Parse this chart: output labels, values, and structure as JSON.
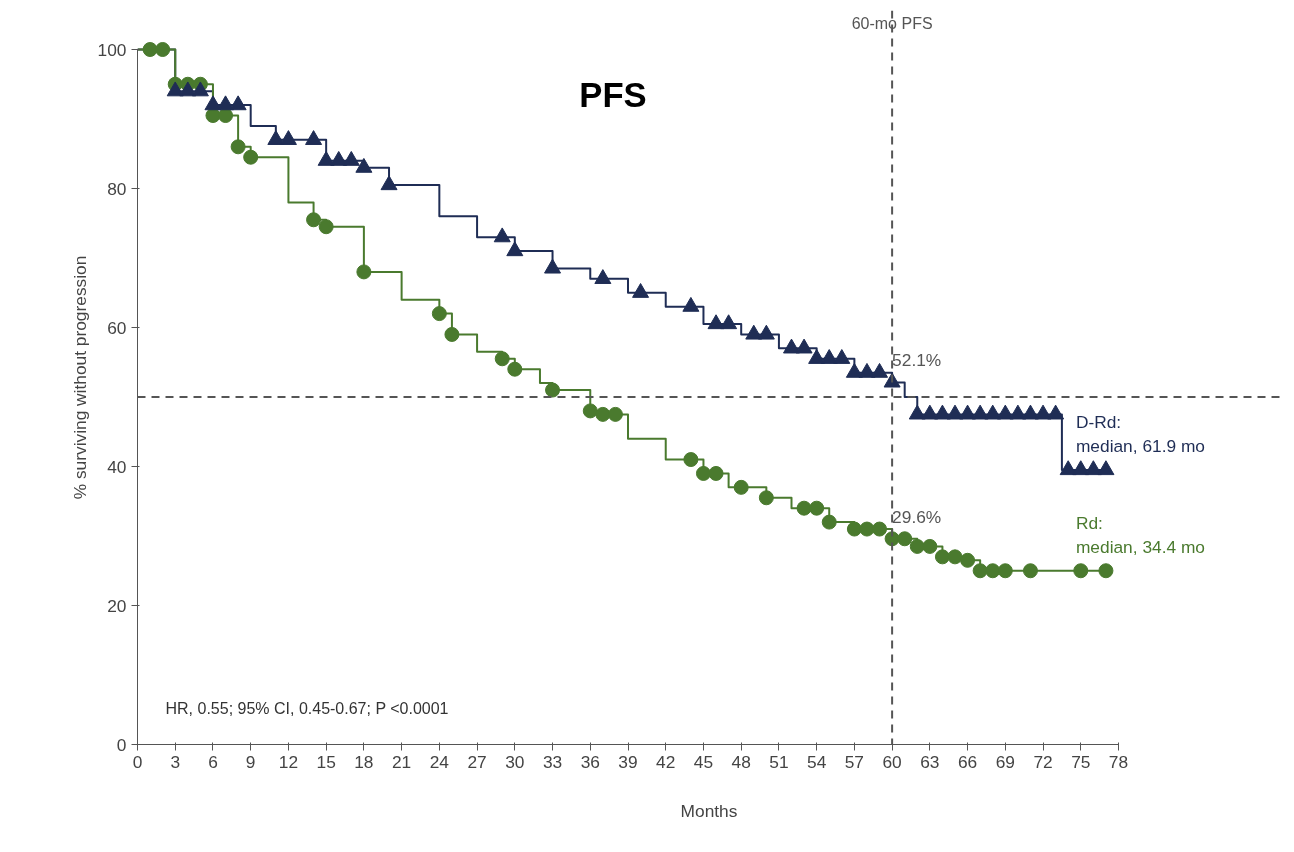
{
  "chart_data": {
    "type": "step",
    "title": "PFS",
    "xlabel": "Months",
    "ylabel": "% surviving without progression",
    "xlim": [
      0,
      78
    ],
    "ylim": [
      0,
      100
    ],
    "xticks": [
      0,
      3,
      6,
      9,
      12,
      15,
      18,
      21,
      24,
      27,
      30,
      33,
      36,
      39,
      42,
      45,
      48,
      51,
      54,
      57,
      60,
      63,
      66,
      69,
      72,
      75,
      78
    ],
    "yticks": [
      0,
      20,
      40,
      60,
      80,
      100
    ],
    "grid": false,
    "line_style": "solid",
    "series": [
      {
        "name": "D-Rd:\nmedian, 61.9 mo",
        "color": "#1f2d55",
        "marker": "none",
        "x": [
          0,
          3,
          6,
          9,
          11,
          15,
          18,
          20,
          24,
          27,
          30,
          33,
          36,
          39,
          42,
          45,
          48,
          51,
          54,
          57,
          60,
          61,
          62,
          73.5,
          77
        ],
        "values": [
          100,
          94,
          92,
          89,
          87,
          84,
          83,
          80.5,
          76,
          73,
          71,
          68.5,
          67,
          65,
          63,
          60.5,
          59,
          57,
          55.5,
          53.5,
          52.1,
          50,
          47.5,
          39.5,
          39.5
        ]
      },
      {
        "color": "#1f2d55",
        "type": "scatter",
        "marker": "triangle",
        "x": [
          3,
          4,
          5,
          6,
          7,
          8,
          11,
          12,
          14,
          15,
          16,
          17,
          18,
          20,
          29,
          30,
          33,
          37,
          40,
          44,
          46,
          47,
          49,
          50,
          52,
          53,
          54,
          55,
          56,
          57,
          58,
          59,
          60,
          62,
          63,
          64,
          65,
          66,
          67,
          68,
          69,
          70,
          71,
          72,
          73,
          74,
          75,
          76,
          77
        ],
        "values": [
          94,
          94,
          94,
          92,
          92,
          92,
          87,
          87,
          87,
          84,
          84,
          84,
          83,
          80.5,
          73,
          71,
          68.5,
          67,
          65,
          63,
          60.5,
          60.5,
          59,
          59,
          57,
          57,
          55.5,
          55.5,
          55.5,
          53.5,
          53.5,
          53.5,
          52.1,
          47.5,
          47.5,
          47.5,
          47.5,
          47.5,
          47.5,
          47.5,
          47.5,
          47.5,
          47.5,
          47.5,
          47.5,
          39.5,
          39.5,
          39.5,
          39.5
        ]
      },
      {
        "name": "Rd:\nmedian, 34.4 mo",
        "color": "#4a7a2e",
        "marker": "none",
        "x": [
          0,
          3,
          6,
          8,
          9,
          12,
          14,
          15,
          18,
          21,
          24,
          25,
          27,
          29,
          30,
          32,
          33,
          36,
          37,
          39,
          42,
          45,
          47,
          50,
          52,
          55,
          57,
          60,
          62,
          64,
          66,
          67,
          77
        ],
        "values": [
          100,
          95,
          90.5,
          86,
          84.5,
          78,
          75.5,
          74.5,
          68,
          64,
          62,
          59,
          56.5,
          55.5,
          54,
          52,
          51,
          48,
          47.5,
          44,
          41,
          39,
          37,
          35.5,
          34,
          32,
          31,
          29.6,
          28.5,
          27,
          26.5,
          25,
          25
        ]
      },
      {
        "color": "#4a7a2e",
        "type": "scatter",
        "marker": "circle",
        "x": [
          1,
          2,
          3,
          4,
          5,
          6,
          7,
          8,
          9,
          14,
          15,
          18,
          24,
          25,
          29,
          30,
          33,
          36,
          37,
          38,
          44,
          45,
          46,
          48,
          50,
          53,
          54,
          55,
          57,
          58,
          59,
          60,
          61,
          62,
          63,
          64,
          65,
          66,
          67,
          68,
          69,
          71,
          75,
          77
        ],
        "values": [
          100,
          100,
          95,
          95,
          95,
          90.5,
          90.5,
          86,
          84.5,
          75.5,
          74.5,
          68,
          62,
          59,
          55.5,
          54,
          51,
          48,
          47.5,
          47.5,
          41,
          39,
          39,
          37,
          35.5,
          34,
          34,
          32,
          31,
          31,
          31,
          29.6,
          29.6,
          28.5,
          28.5,
          27,
          27,
          26.5,
          25,
          25,
          25,
          25,
          25,
          25
        ]
      }
    ],
    "ref_lines": [
      {
        "axis": "y",
        "value": 50,
        "label": null,
        "color": "#555555",
        "line_style": "dashed"
      },
      {
        "axis": "x",
        "value": 60,
        "label": "60-mo PFS",
        "color": "#555555",
        "line_style": "dashed"
      }
    ],
    "annotations": [
      {
        "text": "52.1%",
        "x": 60,
        "y": 52.1
      },
      {
        "text": "29.6%",
        "x": 60,
        "y": 29.6
      },
      "HR, 0.55; 95% CI, 0.45-0.67; P <0.0001"
    ]
  }
}
